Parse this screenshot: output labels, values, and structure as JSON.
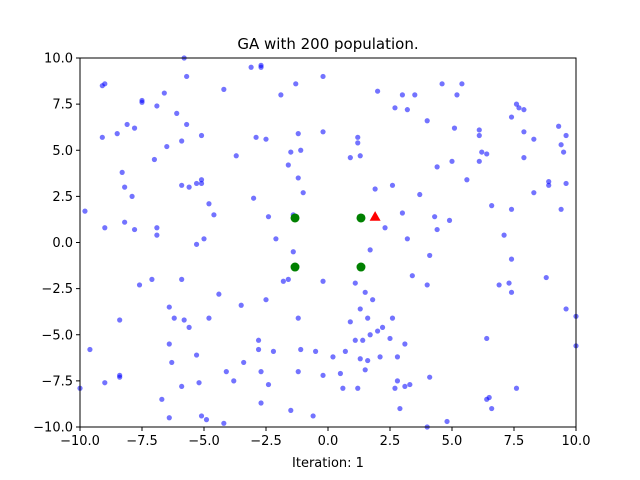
{
  "chart_data": {
    "type": "scatter",
    "title": "GA with 200 population.",
    "xlabel": "Iteration: 1",
    "ylabel": "",
    "xlim": [
      -10,
      10
    ],
    "ylim": [
      -10,
      10
    ],
    "x_ticks": [
      -10,
      -7.5,
      -5,
      -2.5,
      0,
      2.5,
      5,
      7.5,
      10
    ],
    "y_ticks": [
      -10,
      -7.5,
      -5,
      -2.5,
      0,
      2.5,
      5,
      7.5,
      10
    ],
    "x_tick_labels": [
      "−10.0",
      "−7.5",
      "−5.0",
      "−2.5",
      "0.0",
      "2.5",
      "5.0",
      "7.5",
      "10.0"
    ],
    "y_tick_labels": [
      "−10.0",
      "−7.5",
      "−5.0",
      "−2.5",
      "0.0",
      "2.5",
      "5.0",
      "7.5",
      "10.0"
    ],
    "grid": false,
    "series": [
      {
        "marker": "circle",
        "color": "#0000ff",
        "opacity": 0.55,
        "points": [
          [
            -5.8,
            10.0
          ],
          [
            -2.7,
            9.6
          ],
          [
            -2.7,
            9.5
          ],
          [
            -3.1,
            9.5
          ],
          [
            -0.2,
            9.0
          ],
          [
            -5.7,
            9.0
          ],
          [
            -9.0,
            8.6
          ],
          [
            -9.1,
            8.5
          ],
          [
            -1.3,
            8.6
          ],
          [
            -1.9,
            8.0
          ],
          [
            -4.2,
            8.3
          ],
          [
            -6.6,
            8.1
          ],
          [
            -7.5,
            7.7
          ],
          [
            -7.5,
            7.6
          ],
          [
            -6.9,
            7.4
          ],
          [
            -6.1,
            7.0
          ],
          [
            2.0,
            8.2
          ],
          [
            3.0,
            8.0
          ],
          [
            3.5,
            8.0
          ],
          [
            4.6,
            8.6
          ],
          [
            5.2,
            8.0
          ],
          [
            5.4,
            8.6
          ],
          [
            7.6,
            7.5
          ],
          [
            7.7,
            7.3
          ],
          [
            7.9,
            7.2
          ],
          [
            7.4,
            6.8
          ],
          [
            2.7,
            7.3
          ],
          [
            3.2,
            7.2
          ],
          [
            4.0,
            6.6
          ],
          [
            -8.1,
            6.4
          ],
          [
            -7.8,
            6.2
          ],
          [
            -5.7,
            6.4
          ],
          [
            -5.1,
            5.8
          ],
          [
            -5.9,
            5.5
          ],
          [
            -8.5,
            5.9
          ],
          [
            -9.1,
            5.7
          ],
          [
            -2.9,
            5.7
          ],
          [
            -2.5,
            5.6
          ],
          [
            -1.2,
            5.9
          ],
          [
            -0.2,
            6.0
          ],
          [
            1.2,
            5.7
          ],
          [
            1.2,
            5.4
          ],
          [
            5.1,
            6.2
          ],
          [
            6.1,
            6.1
          ],
          [
            6.1,
            5.8
          ],
          [
            7.9,
            6.0
          ],
          [
            8.3,
            5.6
          ],
          [
            9.3,
            6.3
          ],
          [
            9.6,
            5.8
          ],
          [
            9.4,
            5.3
          ],
          [
            9.5,
            4.9
          ],
          [
            -6.5,
            5.2
          ],
          [
            -7.0,
            4.5
          ],
          [
            -8.3,
            3.8
          ],
          [
            -8.2,
            3.0
          ],
          [
            -7.9,
            2.5
          ],
          [
            -5.1,
            3.4
          ],
          [
            -5.3,
            3.2
          ],
          [
            -5.1,
            3.2
          ],
          [
            -5.6,
            3.0
          ],
          [
            -5.9,
            3.1
          ],
          [
            -3.7,
            4.7
          ],
          [
            -1.5,
            4.9
          ],
          [
            -1.1,
            5.0
          ],
          [
            -1.6,
            4.2
          ],
          [
            -1.2,
            3.5
          ],
          [
            0.9,
            4.6
          ],
          [
            1.3,
            4.7
          ],
          [
            6.2,
            4.9
          ],
          [
            6.4,
            4.8
          ],
          [
            6.1,
            4.4
          ],
          [
            7.9,
            4.6
          ],
          [
            5.0,
            4.4
          ],
          [
            4.4,
            4.1
          ],
          [
            5.6,
            3.4
          ],
          [
            2.6,
            3.1
          ],
          [
            1.9,
            2.9
          ],
          [
            3.7,
            2.6
          ],
          [
            -1.0,
            2.7
          ],
          [
            -4.8,
            2.1
          ],
          [
            -3.0,
            2.4
          ],
          [
            -9.8,
            1.7
          ],
          [
            -9.0,
            0.8
          ],
          [
            -8.2,
            1.1
          ],
          [
            -7.8,
            0.7
          ],
          [
            -6.9,
            0.8
          ],
          [
            -6.9,
            0.4
          ],
          [
            -4.6,
            1.5
          ],
          [
            -2.4,
            1.4
          ],
          [
            -2.1,
            0.2
          ],
          [
            -1.4,
            1.5
          ],
          [
            3.0,
            1.6
          ],
          [
            4.3,
            1.4
          ],
          [
            4.9,
            1.2
          ],
          [
            6.6,
            2.0
          ],
          [
            7.4,
            1.8
          ],
          [
            7.1,
            0.4
          ],
          [
            8.3,
            2.7
          ],
          [
            8.9,
            3.3
          ],
          [
            8.9,
            3.1
          ],
          [
            9.6,
            3.2
          ],
          [
            9.4,
            1.8
          ],
          [
            -5.0,
            0.2
          ],
          [
            -5.3,
            -0.1
          ],
          [
            -1.4,
            -0.5
          ],
          [
            1.7,
            -0.4
          ],
          [
            2.3,
            0.8
          ],
          [
            3.2,
            0.2
          ],
          [
            4.4,
            0.7
          ],
          [
            7.4,
            -0.9
          ],
          [
            4.1,
            -0.7
          ],
          [
            -7.1,
            -2.0
          ],
          [
            -7.6,
            -2.3
          ],
          [
            -5.9,
            -2.0
          ],
          [
            -4.4,
            -2.8
          ],
          [
            -3.5,
            -3.4
          ],
          [
            -2.5,
            -3.1
          ],
          [
            -1.6,
            -2.0
          ],
          [
            -1.8,
            -2.1
          ],
          [
            -0.2,
            -2.1
          ],
          [
            1.1,
            -2.2
          ],
          [
            1.5,
            -2.7
          ],
          [
            1.8,
            -3.1
          ],
          [
            3.4,
            -1.8
          ],
          [
            4.0,
            -2.3
          ],
          [
            6.9,
            -2.3
          ],
          [
            7.3,
            -2.2
          ],
          [
            7.4,
            -2.7
          ],
          [
            8.8,
            -1.9
          ],
          [
            9.6,
            -3.6
          ],
          [
            10.0,
            -4.0
          ],
          [
            -8.4,
            -4.2
          ],
          [
            -6.4,
            -3.5
          ],
          [
            -6.2,
            -4.1
          ],
          [
            -5.8,
            -4.2
          ],
          [
            -4.8,
            -4.1
          ],
          [
            -5.6,
            -4.6
          ],
          [
            -2.8,
            -5.3
          ],
          [
            -1.2,
            -4.1
          ],
          [
            0.9,
            -4.3
          ],
          [
            1.3,
            -3.6
          ],
          [
            1.6,
            -4.1
          ],
          [
            2.2,
            -4.6
          ],
          [
            2.6,
            -4.1
          ],
          [
            2.0,
            -4.8
          ],
          [
            1.7,
            -5.0
          ],
          [
            1.4,
            -5.3
          ],
          [
            1.1,
            -5.3
          ],
          [
            2.5,
            -5.2
          ],
          [
            3.1,
            -5.5
          ],
          [
            6.4,
            -5.2
          ],
          [
            -6.4,
            -5.5
          ],
          [
            -6.3,
            -6.5
          ],
          [
            -5.3,
            -6.1
          ],
          [
            -3.4,
            -6.5
          ],
          [
            -2.8,
            -5.8
          ],
          [
            -2.2,
            -5.9
          ],
          [
            -1.1,
            -5.8
          ],
          [
            -0.5,
            -5.9
          ],
          [
            0.2,
            -6.2
          ],
          [
            0.7,
            -5.9
          ],
          [
            1.3,
            -6.3
          ],
          [
            1.6,
            -6.4
          ],
          [
            2.1,
            -6.2
          ],
          [
            2.8,
            -6.2
          ],
          [
            -9.6,
            -5.8
          ],
          [
            -9.0,
            -7.6
          ],
          [
            -8.4,
            -7.3
          ],
          [
            -8.4,
            -7.2
          ],
          [
            -6.7,
            -8.5
          ],
          [
            -5.9,
            -7.8
          ],
          [
            -5.2,
            -7.6
          ],
          [
            -4.1,
            -7.0
          ],
          [
            -3.8,
            -7.5
          ],
          [
            -2.7,
            -7.0
          ],
          [
            -2.4,
            -7.7
          ],
          [
            -1.2,
            -7.0
          ],
          [
            -0.2,
            -7.2
          ],
          [
            0.5,
            -7.1
          ],
          [
            0.6,
            -7.9
          ],
          [
            1.2,
            -7.9
          ],
          [
            1.5,
            -6.9
          ],
          [
            2.8,
            -7.5
          ],
          [
            3.1,
            -7.8
          ],
          [
            3.3,
            -7.7
          ],
          [
            2.7,
            -7.9
          ],
          [
            4.1,
            -7.3
          ],
          [
            6.4,
            -8.5
          ],
          [
            6.5,
            -8.4
          ],
          [
            7.6,
            -7.9
          ],
          [
            -6.4,
            -9.5
          ],
          [
            -5.1,
            -9.4
          ],
          [
            -4.9,
            -9.6
          ],
          [
            -4.2,
            -9.8
          ],
          [
            -2.7,
            -8.7
          ],
          [
            -1.5,
            -9.1
          ],
          [
            -0.6,
            -9.4
          ],
          [
            2.9,
            -9.0
          ],
          [
            4.8,
            -9.7
          ],
          [
            6.6,
            -9.0
          ],
          [
            -10.0,
            -7.9
          ],
          [
            10.0,
            -5.6
          ],
          [
            4.0,
            -10.0
          ]
        ]
      },
      {
        "marker": "circle",
        "color": "#008000",
        "points": [
          [
            -1.33,
            1.33
          ],
          [
            1.33,
            1.33
          ],
          [
            -1.33,
            -1.33
          ],
          [
            1.33,
            -1.33
          ]
        ]
      },
      {
        "marker": "triangle",
        "color": "#ff0000",
        "points": [
          [
            1.9,
            1.4
          ]
        ]
      }
    ]
  }
}
